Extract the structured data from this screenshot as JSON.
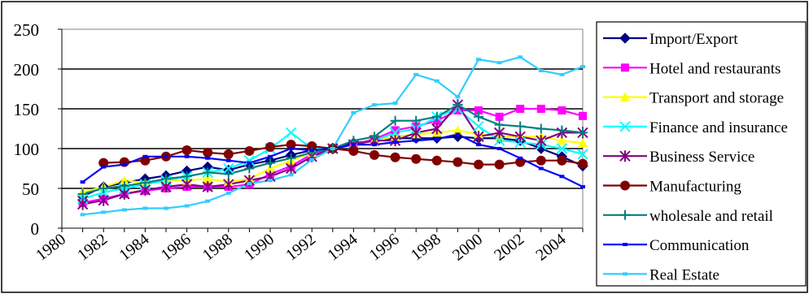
{
  "chart_data": {
    "type": "line",
    "title": "",
    "xlabel": "",
    "ylabel": "",
    "x": [
      1981,
      1982,
      1983,
      1984,
      1985,
      1986,
      1987,
      1988,
      1989,
      1990,
      1991,
      1992,
      1993,
      1994,
      1995,
      1996,
      1997,
      1998,
      1999,
      2000,
      2001,
      2002,
      2003,
      2004,
      2005
    ],
    "xlim": [
      1980,
      2005
    ],
    "x_ticks": [
      "1980",
      "1982",
      "1984",
      "1986",
      "1988",
      "1990",
      "1992",
      "1994",
      "1996",
      "1998",
      "2000",
      "2002",
      "2004"
    ],
    "ylim": [
      0,
      250
    ],
    "y_ticks": [
      "0",
      "50",
      "100",
      "150",
      "200",
      "250"
    ],
    "grid": "horizontal",
    "legend_position": "right",
    "series": [
      {
        "name": "Import/Export",
        "color": "#000080",
        "marker": "diamond",
        "values": [
          40,
          52,
          57,
          62,
          66,
          72,
          77,
          73,
          80,
          85,
          92,
          98,
          100,
          107,
          110,
          113,
          113,
          113,
          115,
          113,
          113,
          110,
          100,
          90,
          78
        ]
      },
      {
        "name": "Hotel and restaurants",
        "color": "#FF00FF",
        "marker": "square",
        "values": [
          32,
          37,
          43,
          47,
          50,
          52,
          52,
          52,
          55,
          68,
          78,
          93,
          100,
          105,
          112,
          123,
          128,
          135,
          148,
          148,
          140,
          150,
          150,
          148,
          141
        ]
      },
      {
        "name": "Transport and storage",
        "color": "#FFFF00",
        "marker": "triangle",
        "values": [
          45,
          52,
          60,
          57,
          60,
          60,
          62,
          58,
          62,
          75,
          85,
          95,
          100,
          105,
          110,
          115,
          118,
          120,
          123,
          118,
          115,
          115,
          115,
          110,
          107
        ]
      },
      {
        "name": "Finance and insurance",
        "color": "#00FFFF",
        "marker": "x",
        "values": [
          37,
          45,
          50,
          55,
          60,
          65,
          70,
          75,
          85,
          100,
          120,
          100,
          100,
          105,
          110,
          120,
          125,
          140,
          150,
          128,
          110,
          108,
          105,
          100,
          93
        ]
      },
      {
        "name": "Business Service",
        "color": "#800080",
        "marker": "star",
        "values": [
          30,
          35,
          43,
          48,
          52,
          55,
          52,
          55,
          60,
          65,
          75,
          90,
          100,
          105,
          110,
          110,
          120,
          125,
          155,
          115,
          120,
          115,
          110,
          120,
          120
        ]
      },
      {
        "name": "Manufacturing",
        "color": "#800000",
        "marker": "circle",
        "values": [
          null,
          82,
          83,
          85,
          90,
          98,
          95,
          93,
          97,
          102,
          105,
          103,
          100,
          97,
          92,
          89,
          87,
          85,
          83,
          80,
          80,
          83,
          85,
          85,
          81
        ]
      },
      {
        "name": "wholesale and retail",
        "color": "#008080",
        "marker": "plus",
        "values": [
          43,
          50,
          53,
          57,
          62,
          65,
          70,
          68,
          75,
          82,
          88,
          95,
          100,
          110,
          115,
          135,
          135,
          140,
          155,
          140,
          130,
          128,
          125,
          123,
          120
        ]
      },
      {
        "name": "Communication",
        "color": "#0000FF",
        "marker": "dash",
        "values": [
          58,
          77,
          80,
          90,
          90,
          90,
          88,
          85,
          82,
          90,
          100,
          98,
          100,
          105,
          105,
          108,
          110,
          112,
          118,
          105,
          100,
          88,
          75,
          65,
          52
        ]
      },
      {
        "name": "Real Estate",
        "color": "#33CCFF",
        "marker": "dash",
        "values": [
          17,
          20,
          23,
          25,
          25,
          28,
          34,
          44,
          56,
          60,
          67,
          86,
          100,
          145,
          155,
          157,
          193,
          185,
          165,
          212,
          208,
          215,
          198,
          193,
          203
        ]
      }
    ]
  }
}
